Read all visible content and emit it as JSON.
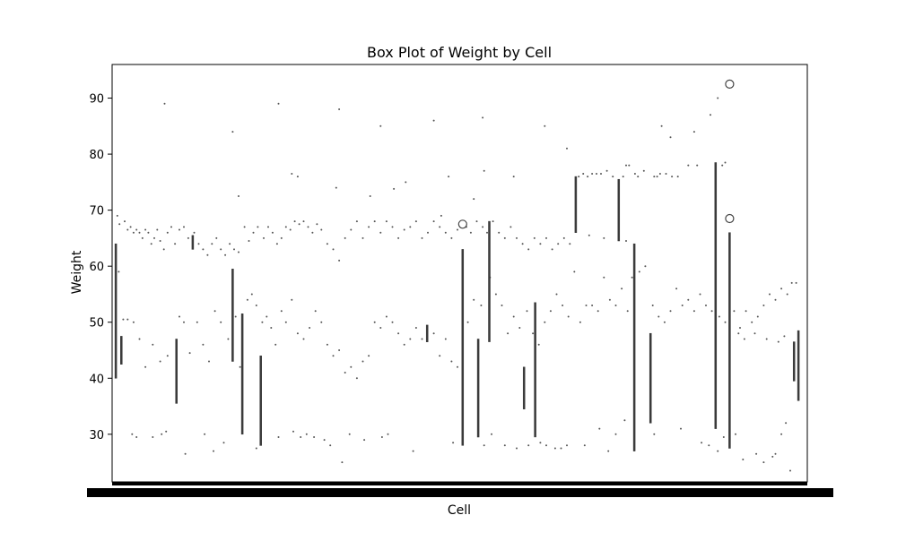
{
  "chart_data": {
    "type": "box",
    "title": "Box Plot of Weight by Cell",
    "xlabel": "Cell",
    "ylabel": "Weight",
    "ylim": [
      21.5,
      96.0
    ],
    "yticks": [
      30,
      40,
      50,
      60,
      70,
      80,
      90
    ],
    "x_tick_labels_note": "dense overlapping category tick labels (unreadable)",
    "box_color": "#3b3b3b",
    "boxes": [
      {
        "x": 0.0,
        "q1": 40,
        "q3": 64
      },
      {
        "x": 0.75,
        "q1": 42.5,
        "q3": 47.5
      },
      {
        "x": 8.2,
        "q1": 35.5,
        "q3": 47
      },
      {
        "x": 10.4,
        "q1": 63,
        "q3": 65.5
      },
      {
        "x": 15.8,
        "q1": 43,
        "q3": 59.5
      },
      {
        "x": 17.1,
        "q1": 30,
        "q3": 51.5
      },
      {
        "x": 19.6,
        "q1": 28,
        "q3": 44
      },
      {
        "x": 42.1,
        "q1": 46.5,
        "q3": 49.5
      },
      {
        "x": 46.9,
        "q1": 28,
        "q3": 63
      },
      {
        "x": 49.0,
        "q1": 29.5,
        "q3": 47
      },
      {
        "x": 50.5,
        "q1": 46.5,
        "q3": 68
      },
      {
        "x": 55.2,
        "q1": 34.5,
        "q3": 42
      },
      {
        "x": 56.7,
        "q1": 29.5,
        "q3": 53.5
      },
      {
        "x": 62.2,
        "q1": 66,
        "q3": 76
      },
      {
        "x": 68.0,
        "q1": 64.5,
        "q3": 75.5
      },
      {
        "x": 70.1,
        "q1": 27,
        "q3": 64
      },
      {
        "x": 72.3,
        "q1": 32,
        "q3": 48
      },
      {
        "x": 81.1,
        "q1": 31,
        "q3": 78.5
      },
      {
        "x": 83.0,
        "q1": 27.5,
        "q3": 66
      },
      {
        "x": 91.7,
        "q1": 39.5,
        "q3": 46.5
      },
      {
        "x": 92.3,
        "q1": 36,
        "q3": 48.5
      }
    ],
    "outliers": [
      {
        "x": 46.9,
        "y": 67.5
      },
      {
        "x": 83.0,
        "y": 92.5
      },
      {
        "x": 83.0,
        "y": 68.5
      }
    ],
    "scatter_points": [
      [
        0.2,
        69
      ],
      [
        0.5,
        67.5
      ],
      [
        1.2,
        68
      ],
      [
        1.6,
        66.5
      ],
      [
        2.0,
        67
      ],
      [
        2.4,
        66
      ],
      [
        2.8,
        66.5
      ],
      [
        3.2,
        66
      ],
      [
        3.6,
        65
      ],
      [
        4.0,
        66.5
      ],
      [
        4.4,
        66
      ],
      [
        4.8,
        64
      ],
      [
        5.2,
        65
      ],
      [
        5.6,
        66.5
      ],
      [
        6.0,
        64.5
      ],
      [
        6.5,
        63
      ],
      [
        7.0,
        66
      ],
      [
        7.5,
        67
      ],
      [
        8.0,
        64
      ],
      [
        8.6,
        66.5
      ],
      [
        9.2,
        67
      ],
      [
        9.8,
        65
      ],
      [
        10.6,
        66
      ],
      [
        11.2,
        64
      ],
      [
        11.8,
        63
      ],
      [
        12.4,
        62
      ],
      [
        13.0,
        64
      ],
      [
        13.6,
        65
      ],
      [
        14.2,
        63
      ],
      [
        14.8,
        62
      ],
      [
        15.4,
        64
      ],
      [
        16.0,
        63
      ],
      [
        16.6,
        62.5
      ],
      [
        17.4,
        67
      ],
      [
        18.0,
        64.5
      ],
      [
        18.6,
        66
      ],
      [
        19.2,
        67
      ],
      [
        20.0,
        65
      ],
      [
        20.6,
        67
      ],
      [
        21.2,
        66
      ],
      [
        21.8,
        64
      ],
      [
        22.4,
        65
      ],
      [
        23.0,
        67
      ],
      [
        23.6,
        66.5
      ],
      [
        24.2,
        68
      ],
      [
        24.8,
        67.5
      ],
      [
        25.4,
        68
      ],
      [
        26.0,
        67
      ],
      [
        26.6,
        66
      ],
      [
        27.2,
        67.5
      ],
      [
        27.8,
        66.5
      ],
      [
        28.6,
        64
      ],
      [
        29.4,
        63
      ],
      [
        30.2,
        61
      ],
      [
        31.0,
        65
      ],
      [
        31.8,
        66.5
      ],
      [
        32.6,
        68
      ],
      [
        33.4,
        65
      ],
      [
        34.2,
        67
      ],
      [
        35.0,
        68
      ],
      [
        35.8,
        66
      ],
      [
        36.6,
        68
      ],
      [
        37.4,
        67
      ],
      [
        38.2,
        65
      ],
      [
        39.0,
        66.5
      ],
      [
        39.8,
        67
      ],
      [
        40.6,
        68
      ],
      [
        41.4,
        65
      ],
      [
        42.2,
        66
      ],
      [
        43.0,
        68
      ],
      [
        43.8,
        67
      ],
      [
        44.6,
        66
      ],
      [
        45.4,
        65
      ],
      [
        46.2,
        66.5
      ],
      [
        47.4,
        67
      ],
      [
        48.0,
        66
      ],
      [
        48.8,
        68
      ],
      [
        49.6,
        67
      ],
      [
        50.2,
        66
      ],
      [
        51.0,
        68
      ],
      [
        51.8,
        66
      ],
      [
        52.6,
        65
      ],
      [
        53.4,
        67
      ],
      [
        54.2,
        65
      ],
      [
        55.0,
        64
      ],
      [
        55.8,
        63
      ],
      [
        56.6,
        65
      ],
      [
        57.4,
        64
      ],
      [
        58.2,
        65
      ],
      [
        59.0,
        63
      ],
      [
        59.8,
        64
      ],
      [
        60.6,
        65
      ],
      [
        61.4,
        64
      ],
      [
        62.6,
        76
      ],
      [
        63.2,
        76.5
      ],
      [
        63.8,
        76
      ],
      [
        64.4,
        76.5
      ],
      [
        65.0,
        76.5
      ],
      [
        65.6,
        76.5
      ],
      [
        66.4,
        77
      ],
      [
        67.2,
        76
      ],
      [
        68.6,
        76
      ],
      [
        69.4,
        78
      ],
      [
        70.6,
        76
      ],
      [
        71.4,
        77
      ],
      [
        72.8,
        76
      ],
      [
        73.6,
        76.5
      ],
      [
        74.4,
        76.5
      ],
      [
        75.2,
        76
      ],
      [
        76.0,
        76
      ],
      [
        69.0,
        64.5
      ],
      [
        66.0,
        65
      ],
      [
        64.0,
        65.5
      ],
      [
        0.4,
        59
      ],
      [
        1.0,
        50.5
      ],
      [
        1.6,
        50.5
      ],
      [
        2.4,
        50
      ],
      [
        3.2,
        47
      ],
      [
        4.0,
        42
      ],
      [
        5.0,
        46
      ],
      [
        6.0,
        43
      ],
      [
        7.0,
        44
      ],
      [
        8.6,
        51
      ],
      [
        9.2,
        50
      ],
      [
        10.0,
        44.5
      ],
      [
        11.0,
        50
      ],
      [
        11.8,
        46
      ],
      [
        12.6,
        43
      ],
      [
        13.4,
        52
      ],
      [
        14.2,
        50
      ],
      [
        15.2,
        47
      ],
      [
        16.2,
        51
      ],
      [
        16.8,
        42
      ],
      [
        17.8,
        54
      ],
      [
        18.4,
        55
      ],
      [
        19.0,
        53
      ],
      [
        19.8,
        50
      ],
      [
        20.4,
        51
      ],
      [
        21.0,
        49
      ],
      [
        21.6,
        46
      ],
      [
        22.4,
        52
      ],
      [
        23.0,
        50
      ],
      [
        23.8,
        54
      ],
      [
        24.6,
        48
      ],
      [
        25.4,
        47
      ],
      [
        26.2,
        49
      ],
      [
        27.0,
        52
      ],
      [
        27.8,
        50
      ],
      [
        28.6,
        46
      ],
      [
        29.4,
        44
      ],
      [
        30.2,
        45
      ],
      [
        31.0,
        41
      ],
      [
        31.8,
        42
      ],
      [
        32.6,
        40
      ],
      [
        33.4,
        43
      ],
      [
        34.2,
        44
      ],
      [
        35.0,
        50
      ],
      [
        35.8,
        49
      ],
      [
        36.6,
        51
      ],
      [
        37.4,
        50
      ],
      [
        38.2,
        48
      ],
      [
        39.0,
        46
      ],
      [
        39.8,
        47
      ],
      [
        40.6,
        49
      ],
      [
        41.4,
        47
      ],
      [
        43.0,
        48
      ],
      [
        43.8,
        44
      ],
      [
        44.6,
        47
      ],
      [
        45.4,
        43
      ],
      [
        46.2,
        42
      ],
      [
        47.6,
        50
      ],
      [
        48.4,
        54
      ],
      [
        49.4,
        53
      ],
      [
        50.6,
        58
      ],
      [
        51.4,
        55
      ],
      [
        52.2,
        53
      ],
      [
        53.0,
        48
      ],
      [
        53.8,
        51
      ],
      [
        54.6,
        49
      ],
      [
        55.6,
        52
      ],
      [
        56.4,
        48
      ],
      [
        57.2,
        46
      ],
      [
        58.0,
        50
      ],
      [
        58.8,
        52
      ],
      [
        59.6,
        55
      ],
      [
        60.4,
        53
      ],
      [
        61.2,
        51
      ],
      [
        62.0,
        59
      ],
      [
        62.8,
        50
      ],
      [
        63.6,
        53
      ],
      [
        64.4,
        53
      ],
      [
        65.2,
        52
      ],
      [
        66.0,
        58
      ],
      [
        66.8,
        54
      ],
      [
        67.6,
        53
      ],
      [
        68.4,
        56
      ],
      [
        69.2,
        52
      ],
      [
        69.8,
        58
      ],
      [
        70.8,
        59
      ],
      [
        71.6,
        60
      ],
      [
        72.6,
        53
      ],
      [
        73.4,
        51
      ],
      [
        74.2,
        50
      ],
      [
        75.0,
        52
      ],
      [
        75.8,
        56
      ],
      [
        76.6,
        53
      ],
      [
        77.4,
        54
      ],
      [
        78.2,
        52
      ],
      [
        79.0,
        55
      ],
      [
        79.8,
        53
      ],
      [
        80.6,
        52
      ],
      [
        81.6,
        51
      ],
      [
        82.4,
        50
      ],
      [
        83.6,
        52
      ],
      [
        84.4,
        49
      ],
      [
        85.2,
        52
      ],
      [
        86.0,
        50
      ],
      [
        86.8,
        51
      ],
      [
        87.6,
        53
      ],
      [
        88.4,
        55
      ],
      [
        89.2,
        54
      ],
      [
        90.0,
        56
      ],
      [
        90.8,
        55
      ],
      [
        91.4,
        57
      ],
      [
        92.0,
        57
      ],
      [
        88.0,
        47
      ],
      [
        86.4,
        48
      ],
      [
        85.0,
        47
      ],
      [
        84.2,
        48
      ],
      [
        89.6,
        46.5
      ],
      [
        90.4,
        47.5
      ],
      [
        2.2,
        30
      ],
      [
        2.8,
        29.5
      ],
      [
        5.0,
        29.5
      ],
      [
        6.2,
        30
      ],
      [
        6.8,
        30.5
      ],
      [
        9.4,
        26.5
      ],
      [
        12.0,
        30
      ],
      [
        13.2,
        27
      ],
      [
        14.6,
        28.5
      ],
      [
        19.0,
        27.5
      ],
      [
        22.0,
        29.5
      ],
      [
        24.0,
        30.5
      ],
      [
        25.0,
        29.5
      ],
      [
        25.8,
        30
      ],
      [
        26.8,
        29.5
      ],
      [
        28.2,
        29
      ],
      [
        29.0,
        28
      ],
      [
        30.6,
        25
      ],
      [
        31.6,
        30
      ],
      [
        33.6,
        29
      ],
      [
        36.0,
        29.5
      ],
      [
        36.8,
        30
      ],
      [
        40.2,
        27
      ],
      [
        45.6,
        28.5
      ],
      [
        49.8,
        28
      ],
      [
        50.8,
        30
      ],
      [
        52.6,
        28
      ],
      [
        54.2,
        27.5
      ],
      [
        55.8,
        28
      ],
      [
        57.4,
        28.5
      ],
      [
        58.2,
        28
      ],
      [
        59.4,
        27.5
      ],
      [
        60.2,
        27.5
      ],
      [
        61.0,
        28
      ],
      [
        63.4,
        28
      ],
      [
        65.4,
        31
      ],
      [
        66.6,
        27
      ],
      [
        67.6,
        30
      ],
      [
        68.8,
        32.5
      ],
      [
        72.8,
        30
      ],
      [
        76.4,
        31
      ],
      [
        79.2,
        28.5
      ],
      [
        80.2,
        28
      ],
      [
        81.4,
        27
      ],
      [
        82.2,
        29.5
      ],
      [
        83.8,
        30
      ],
      [
        84.8,
        25.5
      ],
      [
        86.6,
        26.5
      ],
      [
        87.6,
        25
      ],
      [
        88.8,
        26
      ],
      [
        89.2,
        26.5
      ],
      [
        90.0,
        30
      ],
      [
        90.6,
        32
      ],
      [
        91.2,
        23.5
      ],
      [
        6.6,
        89
      ],
      [
        15.8,
        84
      ],
      [
        22.0,
        89
      ],
      [
        24.6,
        76
      ],
      [
        30.2,
        88
      ],
      [
        35.8,
        85
      ],
      [
        39.2,
        75
      ],
      [
        43.0,
        86
      ],
      [
        45.0,
        76
      ],
      [
        49.6,
        86.5
      ],
      [
        49.8,
        77
      ],
      [
        53.8,
        76
      ],
      [
        58.0,
        85
      ],
      [
        61.0,
        81
      ],
      [
        73.8,
        85
      ],
      [
        75.0,
        83
      ],
      [
        77.4,
        78
      ],
      [
        78.2,
        84
      ],
      [
        78.6,
        78
      ],
      [
        80.4,
        87
      ],
      [
        81.4,
        90
      ],
      [
        82.0,
        78
      ],
      [
        82.4,
        78.5
      ],
      [
        69.0,
        78
      ],
      [
        70.2,
        76.5
      ],
      [
        73.2,
        76
      ],
      [
        16.6,
        72.5
      ],
      [
        48.4,
        72
      ],
      [
        37.6,
        73.8
      ],
      [
        29.8,
        74
      ],
      [
        34.4,
        72.5
      ],
      [
        44.0,
        69
      ],
      [
        23.8,
        76.5
      ]
    ]
  }
}
